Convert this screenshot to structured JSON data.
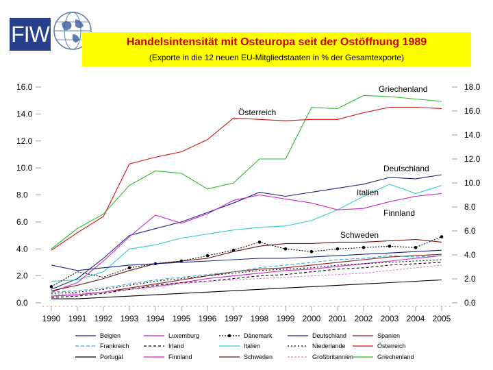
{
  "logo": {
    "text": "FIW"
  },
  "header": {
    "title": "Handelsintensität mit Osteuropa seit der Ostöffnung 1989",
    "subtitle": "(Exporte in die 12 neuen EU-Mitgliedstaaten in % der Gesamtexporte)"
  },
  "chart_data": {
    "type": "line",
    "x": [
      1990,
      1991,
      1992,
      1993,
      1994,
      1995,
      1996,
      1997,
      1998,
      1999,
      2000,
      2001,
      2002,
      2003,
      2004,
      2005
    ],
    "left_axis": {
      "range": [
        0,
        16
      ],
      "ticks": [
        "0.0",
        "2.0",
        "4.0",
        "6.0",
        "8.0",
        "10.0",
        "12.0",
        "14.0",
        "16.0"
      ]
    },
    "right_axis": {
      "range": [
        0,
        18
      ],
      "ticks": [
        "0.0",
        "2.0",
        "4.0",
        "6.0",
        "8.0",
        "10.0",
        "12.0",
        "14.0",
        "16.0",
        "18.0"
      ]
    },
    "series": [
      {
        "name": "Griechenland",
        "color": "#22bb22",
        "dash": "",
        "axis": "right",
        "label": "Griechenland",
        "values": [
          4.5,
          6.2,
          7.4,
          9.8,
          11.0,
          10.8,
          9.5,
          10.0,
          12.0,
          12.0,
          16.3,
          16.2,
          17.3,
          17.2,
          17.0,
          16.8
        ]
      },
      {
        "name": "Österreich",
        "color": "#cc1111",
        "dash": "",
        "axis": "left",
        "label": "Österreich",
        "values": [
          3.9,
          5.2,
          6.4,
          10.3,
          10.8,
          11.2,
          12.1,
          13.7,
          13.6,
          13.5,
          13.6,
          13.6,
          14.1,
          14.5,
          14.5,
          14.4
        ]
      },
      {
        "name": "Deutschland",
        "color": "#1a237e",
        "dash": "",
        "axis": "left",
        "label": "Deutschland",
        "values": [
          1.0,
          1.8,
          3.3,
          5.0,
          5.5,
          6.0,
          6.7,
          7.4,
          8.2,
          7.9,
          8.2,
          8.5,
          8.8,
          9.3,
          9.2,
          9.5
        ]
      },
      {
        "name": "Italien",
        "color": "#33cccc",
        "dash": "",
        "axis": "left",
        "label": "Italien",
        "values": [
          1.6,
          1.7,
          2.3,
          4.0,
          4.3,
          4.8,
          5.1,
          5.4,
          5.6,
          5.7,
          6.1,
          6.9,
          7.9,
          8.8,
          8.1,
          8.7
        ]
      },
      {
        "name": "Finnland",
        "color": "#cc22cc",
        "dash": "",
        "axis": "left",
        "label": "Finnland",
        "values": [
          0.8,
          1.5,
          3.1,
          4.9,
          6.5,
          5.9,
          6.6,
          7.6,
          8.0,
          7.7,
          7.4,
          6.9,
          7.0,
          7.5,
          7.9,
          8.1
        ]
      },
      {
        "name": "Schweden",
        "color": "#661111",
        "dash": "",
        "axis": "left",
        "label": "Schweden",
        "values": [
          0.9,
          1.3,
          1.8,
          2.4,
          2.9,
          3.1,
          3.3,
          3.8,
          4.2,
          4.4,
          4.4,
          4.5,
          4.5,
          4.6,
          4.7,
          4.5
        ]
      },
      {
        "name": "Dänemark",
        "color": "#000000",
        "dash": "2,2",
        "axis": "left",
        "label": "",
        "values": [
          1.2,
          2.3,
          1.9,
          2.6,
          2.9,
          3.1,
          3.5,
          3.9,
          4.5,
          4.0,
          3.8,
          4.0,
          4.1,
          4.2,
          4.1,
          4.9
        ]
      },
      {
        "name": "Belgien",
        "color": "#1a237e",
        "dash": "",
        "axis": "left",
        "label": "",
        "values": [
          2.8,
          2.4,
          2.6,
          2.8,
          2.9,
          3.0,
          3.1,
          3.2,
          3.3,
          3.3,
          3.4,
          3.5,
          3.6,
          3.7,
          3.8,
          3.9
        ]
      },
      {
        "name": "Spanien",
        "color": "#8b1a1a",
        "dash": "",
        "axis": "left",
        "label": "",
        "values": [
          0.5,
          0.6,
          0.8,
          1.1,
          1.4,
          1.7,
          2.0,
          2.3,
          2.5,
          2.6,
          2.8,
          3.0,
          3.2,
          3.4,
          3.5,
          3.6
        ]
      },
      {
        "name": "Luxemburg",
        "color": "#cc22cc",
        "dash": "",
        "axis": "left",
        "label": "",
        "values": [
          0.5,
          0.6,
          0.8,
          1.0,
          1.2,
          1.5,
          1.8,
          2.0,
          2.2,
          2.4,
          2.5,
          2.7,
          2.9,
          3.1,
          3.3,
          3.5
        ]
      },
      {
        "name": "Frankreich",
        "color": "#33aacc",
        "dash": "5,3",
        "axis": "left",
        "label": "",
        "values": [
          0.8,
          0.9,
          1.1,
          1.4,
          1.7,
          1.9,
          2.1,
          2.3,
          2.6,
          2.8,
          3.0,
          3.2,
          3.3,
          3.5,
          3.4,
          3.5
        ]
      },
      {
        "name": "Irland",
        "color": "#000000",
        "dash": "4,3",
        "axis": "left",
        "label": "",
        "values": [
          0.4,
          0.5,
          0.7,
          1.0,
          1.3,
          1.5,
          1.6,
          1.8,
          2.0,
          2.1,
          2.3,
          2.5,
          2.6,
          2.8,
          2.9,
          3.0
        ]
      },
      {
        "name": "Niederlande",
        "color": "#000000",
        "dash": "2,3",
        "axis": "left",
        "label": "",
        "values": [
          0.7,
          0.8,
          1.0,
          1.3,
          1.6,
          1.8,
          2.0,
          2.2,
          2.4,
          2.5,
          2.6,
          2.8,
          2.9,
          3.0,
          3.1,
          3.2
        ]
      },
      {
        "name": "Portugal",
        "color": "#000000",
        "dash": "",
        "axis": "left",
        "label": "",
        "values": [
          0.3,
          0.3,
          0.4,
          0.5,
          0.6,
          0.7,
          0.8,
          0.9,
          1.0,
          1.1,
          1.2,
          1.3,
          1.4,
          1.5,
          1.6,
          1.7
        ]
      },
      {
        "name": "Großbritannien",
        "color": "#cc88cc",
        "dash": "3,2",
        "axis": "left",
        "label": "",
        "values": [
          0.6,
          0.7,
          0.8,
          1.0,
          1.2,
          1.4,
          1.6,
          1.7,
          1.8,
          1.9,
          2.0,
          2.1,
          2.2,
          2.4,
          2.6,
          2.8
        ]
      }
    ],
    "legend": {
      "placement": "bottom",
      "entries": [
        {
          "name": "Belgien",
          "marker": false
        },
        {
          "name": "Luxemburg",
          "marker": false
        },
        {
          "name": "Dänemark",
          "marker": true
        },
        {
          "name": "Deutschland",
          "marker": false
        },
        {
          "name": "Spanien",
          "marker": false
        },
        {
          "name": "Frankreich",
          "marker": false
        },
        {
          "name": "Irland",
          "marker": false
        },
        {
          "name": "Italien",
          "marker": false
        },
        {
          "name": "Niederlande",
          "marker": false
        },
        {
          "name": "Österreich",
          "marker": false
        },
        {
          "name": "Portugal",
          "marker": false
        },
        {
          "name": "Finnland",
          "marker": false
        },
        {
          "name": "Schweden",
          "marker": false
        },
        {
          "name": "Großbritannien",
          "marker": false
        },
        {
          "name": "Griechenland",
          "marker": false
        }
      ]
    }
  }
}
